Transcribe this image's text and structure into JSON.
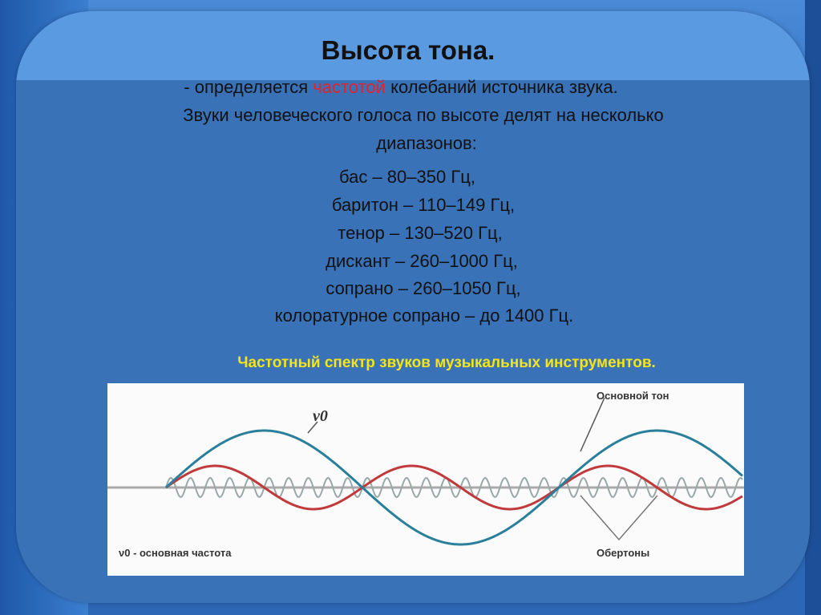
{
  "slide": {
    "title": "Высота тона.",
    "line1_prefix": "- определяется ",
    "line1_highlight": "частотой",
    "line1_suffix": " колебаний источника звука.",
    "line2": "Звуки человеческого голоса по высоте делят на несколько",
    "line3": "диапазонов:",
    "ranges": [
      "бас – 80–350 Гц,",
      "баритон – 110–149 Гц,",
      "тенор – 130–520 Гц,",
      "дискант – 260–1000 Гц,",
      "сопрано – 260–1050 Гц,",
      "колоратурное сопрано – до 1400 Гц."
    ],
    "subtitle": "Частотный спектр звуков музыкальных инструментов."
  },
  "diagram": {
    "label_fundamental_tone": "Основной тон",
    "label_overtones": "Обертоны",
    "label_nu0": "ν0",
    "label_legend": "ν0 - основная частота",
    "colors": {
      "fundamental": "#2a7f9a",
      "overtone1": "#c0393b",
      "overtone2": "#9aa8a8",
      "highlight": "#e8202a",
      "subtitle": "#f5e41a"
    }
  }
}
